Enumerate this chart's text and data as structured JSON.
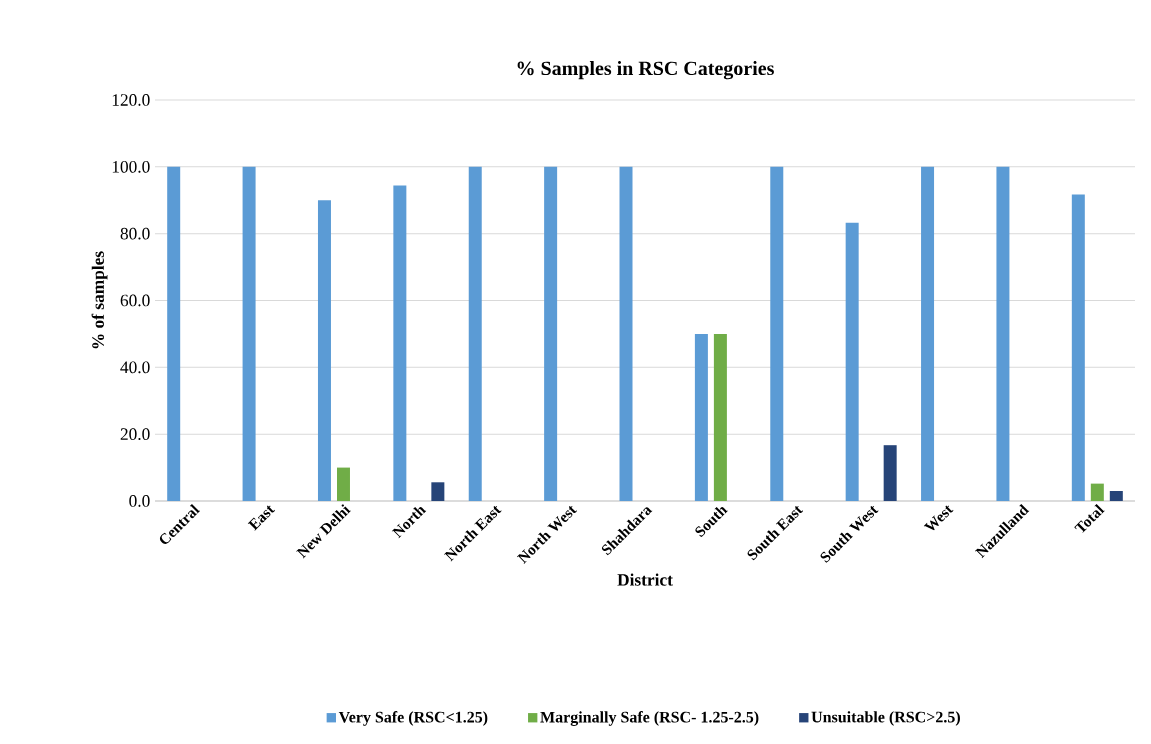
{
  "chart_data": {
    "type": "bar",
    "title": "% Samples in RSC Categories",
    "xlabel": "District",
    "ylabel": "% of samples",
    "categories": [
      "Central",
      "East",
      "New Delhi",
      "North",
      "North East",
      "North West",
      "Shahdara",
      "South",
      "South East",
      "South West",
      "West",
      "Nazulland",
      "Total"
    ],
    "series": [
      {
        "name": "Very Safe (RSC<1.25)",
        "color": "#5b9bd5",
        "values": [
          100,
          100,
          90,
          94.4,
          100,
          100,
          100,
          50,
          100,
          83.3,
          100,
          100,
          91.7
        ]
      },
      {
        "name": "Marginally Safe (RSC- 1.25-2.5)",
        "color": "#70ad47",
        "values": [
          0,
          0,
          10,
          0,
          0,
          0,
          0,
          50,
          0,
          0,
          0,
          0,
          5.2
        ]
      },
      {
        "name": "Unsuitable (RSC>2.5)",
        "color": "#264478",
        "values": [
          0,
          0,
          0,
          5.6,
          0,
          0,
          0,
          0,
          0,
          16.7,
          0,
          0,
          3.0
        ]
      }
    ],
    "ylim": [
      0,
      120
    ],
    "yticks": [
      {
        "value": 0,
        "label": "0.0"
      },
      {
        "value": 20,
        "label": "20.0"
      },
      {
        "value": 40,
        "label": "40.0"
      },
      {
        "value": 60,
        "label": "60.0"
      },
      {
        "value": 80,
        "label": "80.0"
      },
      {
        "value": 100,
        "label": "100.0"
      },
      {
        "value": 120,
        "label": "120.0"
      }
    ],
    "grid": "y",
    "legend": "bottom"
  }
}
